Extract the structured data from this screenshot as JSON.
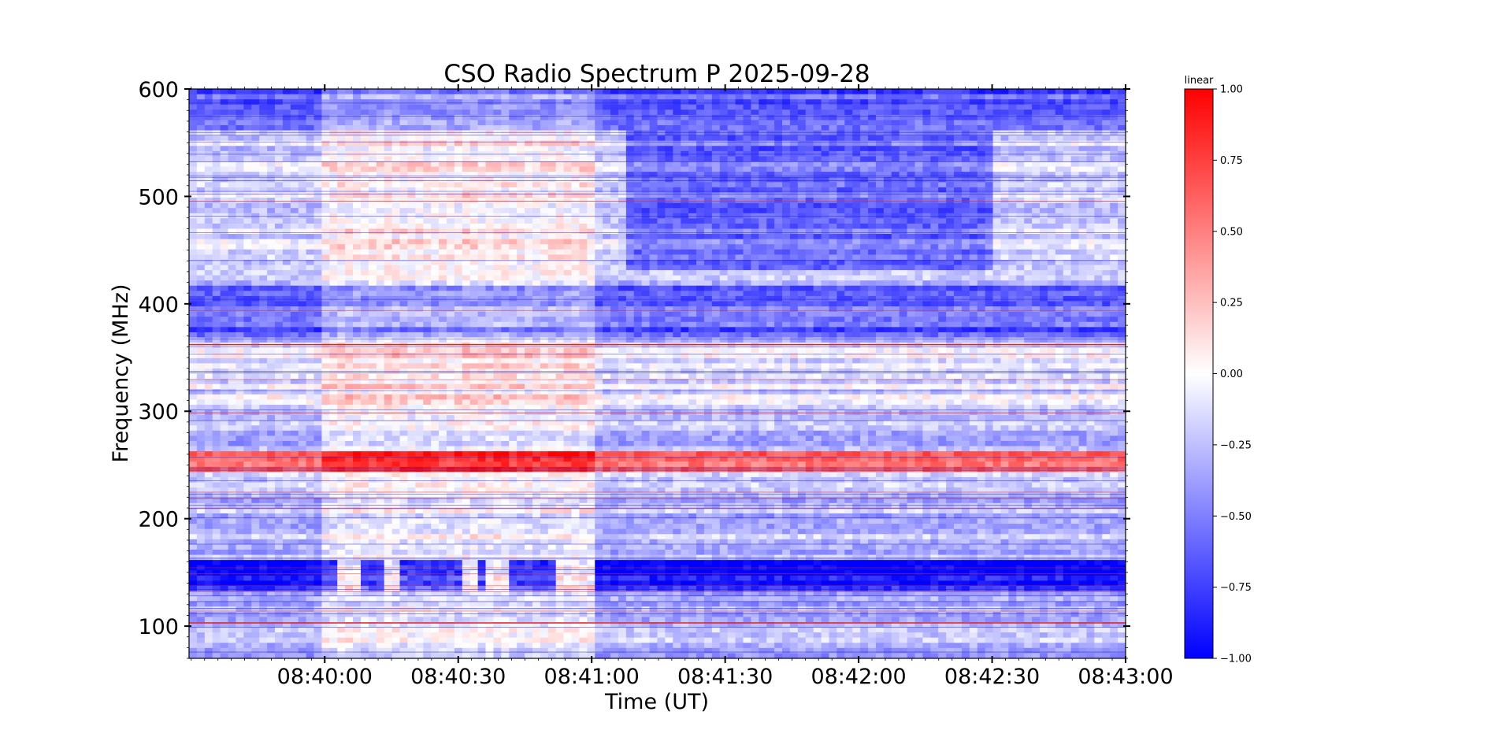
{
  "chart_data": {
    "type": "heatmap",
    "title": "CSO Radio Spectrum P 2025-09-28",
    "xlabel": "Time (UT)",
    "ylabel": "Frequency (MHz)",
    "x_tick_labels": [
      "08:40:00",
      "08:40:30",
      "08:41:00",
      "08:41:30",
      "08:42:00",
      "08:42:30",
      "08:43:00"
    ],
    "x_tick_seconds": [
      0,
      30,
      60,
      90,
      120,
      150,
      180
    ],
    "xlim_seconds": [
      -30.5,
      180
    ],
    "y_ticks": [
      100,
      200,
      300,
      400,
      500,
      600
    ],
    "ylim": [
      70,
      600
    ],
    "colorbar": {
      "label": "linear",
      "range": [
        -1.0,
        1.0
      ],
      "tick_labels": [
        "1.00",
        "0.75",
        "0.50",
        "0.25",
        "0.00",
        "−0.25",
        "−0.50",
        "−0.75",
        "−1.00"
      ],
      "tick_values": [
        1.0,
        0.75,
        0.5,
        0.25,
        0.0,
        -0.25,
        -0.5,
        -0.75,
        -1.0
      ],
      "colormap": "bwr",
      "low_color": "#0000ff",
      "mid_color": "#ffffff",
      "high_color": "#ff0000"
    },
    "features": {
      "strong_negative_band_mhz": [
        135,
        160
      ],
      "positive_band_mhz": [
        245,
        262
      ],
      "positive_line_mhz": [
        362,
        103
      ],
      "negative_band_mhz": [
        370,
        415
      ],
      "burst_seconds": [
        [
          3,
          8
        ],
        [
          14,
          17
        ],
        [
          31,
          34
        ],
        [
          36,
          42
        ],
        [
          52,
          60
        ]
      ]
    }
  }
}
